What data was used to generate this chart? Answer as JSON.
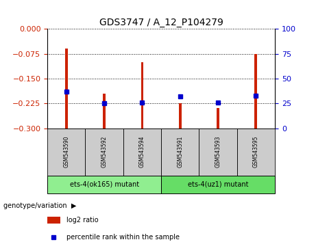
{
  "title": "GDS3747 / A_12_P104279",
  "categories": [
    "GSM543590",
    "GSM543592",
    "GSM543594",
    "GSM543591",
    "GSM543593",
    "GSM543595"
  ],
  "log2_ratio": [
    -0.058,
    -0.195,
    -0.1,
    -0.225,
    -0.238,
    -0.075
  ],
  "percentile_rank": [
    37,
    25,
    26,
    32,
    26,
    33
  ],
  "ylim_left": [
    -0.3,
    0
  ],
  "ylim_right": [
    0,
    100
  ],
  "yticks_left": [
    0,
    -0.075,
    -0.15,
    -0.225,
    -0.3
  ],
  "yticks_right": [
    0,
    25,
    50,
    75,
    100
  ],
  "bar_color": "#cc2200",
  "dot_color": "#0000cc",
  "bar_width": 0.07,
  "groups": [
    {
      "label": "ets-4(ok165) mutant",
      "indices": [
        0,
        1,
        2
      ],
      "color": "#90ee90"
    },
    {
      "label": "ets-4(uz1) mutant",
      "indices": [
        3,
        4,
        5
      ],
      "color": "#66dd66"
    }
  ],
  "genotype_label": "genotype/variation",
  "legend_log2": "log2 ratio",
  "legend_pct": "percentile rank within the sample",
  "left_label_color": "#cc2200",
  "right_label_color": "#0000cc",
  "background_color": "#ffffff",
  "plot_bg": "#ffffff",
  "xticklabel_bg": "#cccccc",
  "group_row_bg": "#cccccc"
}
